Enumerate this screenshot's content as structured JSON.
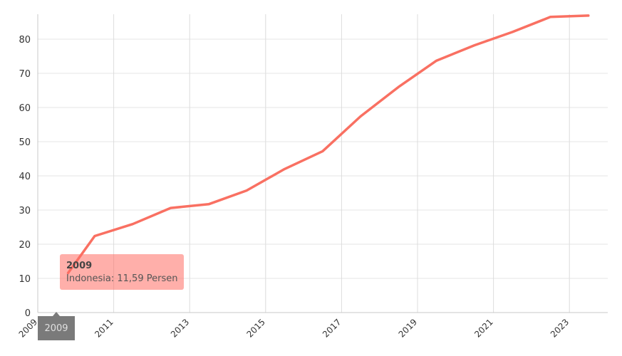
{
  "chart_data": {
    "type": "line",
    "x_ticks": [
      "2009",
      "2011",
      "2013",
      "2015",
      "2017",
      "2019",
      "2021",
      "2023"
    ],
    "y_ticks": [
      0,
      10,
      20,
      30,
      40,
      50,
      60,
      70,
      80
    ],
    "xlim": [
      2009,
      2024
    ],
    "ylim": [
      0,
      87
    ],
    "grid": true,
    "series": [
      {
        "color": "#f97062",
        "points": [
          {
            "x": 2009.8,
            "y": 11.59
          },
          {
            "x": 2010.5,
            "y": 22.4
          },
          {
            "x": 2011.5,
            "y": 25.9
          },
          {
            "x": 2012.5,
            "y": 30.6
          },
          {
            "x": 2013.5,
            "y": 31.7
          },
          {
            "x": 2014.5,
            "y": 35.7
          },
          {
            "x": 2015.5,
            "y": 42.0
          },
          {
            "x": 2016.5,
            "y": 47.2
          },
          {
            "x": 2017.5,
            "y": 57.4
          },
          {
            "x": 2018.5,
            "y": 66.0
          },
          {
            "x": 2019.5,
            "y": 73.7
          },
          {
            "x": 2020.5,
            "y": 78.2
          },
          {
            "x": 2021.5,
            "y": 82.1
          },
          {
            "x": 2022.5,
            "y": 86.5
          },
          {
            "x": 2023.5,
            "y": 86.9
          }
        ]
      }
    ]
  },
  "tooltip": {
    "title": "2009",
    "body": "Indonesia: 11,59 Persen"
  },
  "crosshair_label": "2009"
}
